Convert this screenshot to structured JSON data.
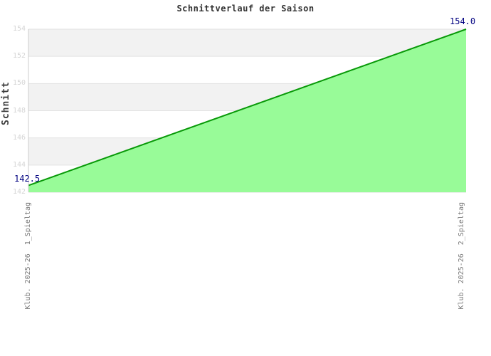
{
  "title": "Schnittverlauf der Saison",
  "chart_data": {
    "type": "area",
    "title": "Schnittverlauf der Saison",
    "xlabel": "",
    "ylabel": "Schnitt",
    "categories": [
      "Klub. 2025-26  1_Spieltag",
      "Klub. 2025-26  2_Spieltag"
    ],
    "series": [
      {
        "name": "Schnitt",
        "values": [
          142.5,
          154.0
        ]
      }
    ],
    "point_labels": {
      "start": "142.5",
      "end": "154.0"
    },
    "ylim": [
      142,
      154
    ],
    "yticks": [
      142,
      144,
      146,
      148,
      150,
      152,
      154
    ],
    "grid": "horizontal band stripes, no vertical gridlines",
    "legend_position": "none",
    "colors": {
      "line": "#089908",
      "fill": "#98fb98",
      "band": "#f2f2f2",
      "grid_line": "#e2e2e2",
      "axis_line": "#cccccc",
      "ytick_label": "#d5d5d5",
      "xtick_label": "#7a7a7a",
      "point_label": "#000080",
      "title": "#333333",
      "ylabel": "#3c3c3c"
    }
  }
}
